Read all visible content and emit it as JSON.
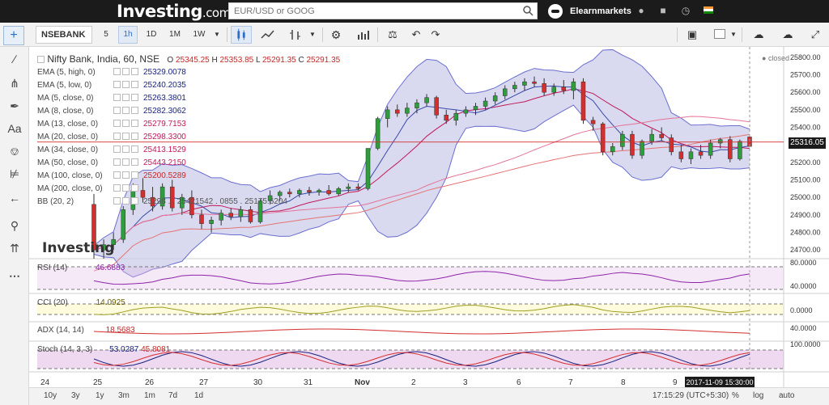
{
  "header": {
    "logo_main": "Investing",
    "logo_suffix": ".com",
    "search_placeholder": "EUR/USD or GOOG",
    "username": "Elearnmarkets"
  },
  "toolbar": {
    "symbol": "NSEBANK",
    "intervals": [
      "5",
      "1h",
      "1D",
      "1M",
      "1W"
    ],
    "active_interval": "1h"
  },
  "legend": {
    "title": "Nifty Bank, India, 60, NSE",
    "ohlc": {
      "o_label": "O",
      "o": "25345.25",
      "h_label": "H",
      "h": "25353.85",
      "l_label": "L",
      "l": "25291.35",
      "c_label": "C",
      "c": "25291.35"
    },
    "indicators": [
      {
        "label": "EMA (5, high, 0)",
        "value": "25329.0078",
        "color": "#1a237e"
      },
      {
        "label": "EMA (5, low, 0)",
        "value": "25240.2035",
        "color": "#1a237e"
      },
      {
        "label": "MA (5, close, 0)",
        "value": "25263.3801",
        "color": "#1a237e"
      },
      {
        "label": "MA (8, close, 0)",
        "value": "25282.3062",
        "color": "#1a237e"
      },
      {
        "label": "MA (13, close, 0)",
        "value": "25279.7153",
        "color": "#c2185b"
      },
      {
        "label": "MA (20, close, 0)",
        "value": "25298.3300",
        "color": "#c2185b"
      },
      {
        "label": "MA (34, close, 0)",
        "value": "25413.1529",
        "color": "#c2185b"
      },
      {
        "label": "MA (50, close, 0)",
        "value": "25443.2150",
        "color": "#c2185b"
      },
      {
        "label": "MA (100, close, 0)",
        "value": "25200.5289",
        "color": "#c62828"
      },
      {
        "label": "MA (200, close, 0)",
        "value": ""
      },
      {
        "label": "BB (20, 2)",
        "value": "25298 . . 25421542 . 0855 . 25175.6204"
      }
    ],
    "closed_label": "closed"
  },
  "price_axis": {
    "ticks": [
      "25800.00",
      "25700.00",
      "25600.00",
      "25500.00",
      "25400.00",
      "25300.00",
      "25200.00",
      "25100.00",
      "25000.00",
      "24900.00",
      "24800.00",
      "24700.00"
    ],
    "current_price": "25316.05"
  },
  "panes": {
    "rsi": {
      "label": "RSI (14)",
      "value": "46.6883",
      "ticks": [
        "80.0000",
        "40.0000"
      ]
    },
    "cci": {
      "label": "CCI (20)",
      "value": "14.0925",
      "ticks": [
        "0.0000"
      ]
    },
    "adx": {
      "label": "ADX (14, 14)",
      "value": "18.5683",
      "ticks": [
        "40.0000"
      ]
    },
    "stoch": {
      "label": "Stoch (14, 3, 3)",
      "value1": "53.0287",
      "value2": "45.8081",
      "ticks": [
        "100.0000"
      ]
    }
  },
  "time_axis": {
    "labels": [
      "24",
      "25",
      "26",
      "27",
      "30",
      "31",
      "Nov",
      "2",
      "3",
      "6",
      "7",
      "8",
      "9"
    ],
    "crosshair_time": "2017-11-09 15:30:00"
  },
  "bottom": {
    "ranges": [
      "10y",
      "3y",
      "1y",
      "3m",
      "1m",
      "7d",
      "1d"
    ],
    "clock": "17:15:29 (UTC+5:30)",
    "opts": [
      "%",
      "log",
      "auto"
    ]
  },
  "watermark": "Investing",
  "colors": {
    "bull": "#2e9e3c",
    "bear": "#d32f2f",
    "band_fill": "#c9cbe8",
    "band_line": "#6b6fd0",
    "header_bg": "#1b1b1b"
  },
  "chart_data": {
    "type": "candlestick",
    "title": "Nifty Bank, India, 60, NSE",
    "x_labels": [
      "24",
      "25",
      "26",
      "27",
      "30",
      "31",
      "Nov",
      "2",
      "3",
      "6",
      "7",
      "8",
      "9"
    ],
    "ylim": [
      24650,
      25850
    ],
    "series": [
      {
        "o": 24960,
        "h": 25020,
        "l": 24650,
        "c": 24700
      },
      {
        "o": 24700,
        "h": 24760,
        "l": 24650,
        "c": 24730
      },
      {
        "o": 24730,
        "h": 24800,
        "l": 24700,
        "c": 24760
      },
      {
        "o": 24760,
        "h": 24950,
        "l": 24740,
        "c": 24930
      },
      {
        "o": 24930,
        "h": 25080,
        "l": 24900,
        "c": 25040
      },
      {
        "o": 25040,
        "h": 25110,
        "l": 24970,
        "c": 25000
      },
      {
        "o": 25000,
        "h": 25060,
        "l": 24920,
        "c": 24950
      },
      {
        "o": 24950,
        "h": 25080,
        "l": 24930,
        "c": 25060
      },
      {
        "o": 25060,
        "h": 25100,
        "l": 24920,
        "c": 24940
      },
      {
        "o": 24940,
        "h": 25020,
        "l": 24900,
        "c": 25000
      },
      {
        "o": 25000,
        "h": 25040,
        "l": 24880,
        "c": 24900
      },
      {
        "o": 24900,
        "h": 24930,
        "l": 24820,
        "c": 24850
      },
      {
        "o": 24850,
        "h": 24890,
        "l": 24800,
        "c": 24870
      },
      {
        "o": 24870,
        "h": 24930,
        "l": 24840,
        "c": 24910
      },
      {
        "o": 24910,
        "h": 24940,
        "l": 24870,
        "c": 24890
      },
      {
        "o": 24890,
        "h": 24950,
        "l": 24860,
        "c": 24930
      },
      {
        "o": 24930,
        "h": 24950,
        "l": 24850,
        "c": 24860
      },
      {
        "o": 24860,
        "h": 24990,
        "l": 24850,
        "c": 24980
      },
      {
        "o": 24980,
        "h": 25040,
        "l": 24960,
        "c": 25010
      },
      {
        "o": 25010,
        "h": 25040,
        "l": 24980,
        "c": 25030
      },
      {
        "o": 25030,
        "h": 25050,
        "l": 25000,
        "c": 25020
      },
      {
        "o": 25020,
        "h": 25050,
        "l": 25000,
        "c": 25040
      },
      {
        "o": 25040,
        "h": 25060,
        "l": 25010,
        "c": 25030
      },
      {
        "o": 25030,
        "h": 25050,
        "l": 25010,
        "c": 25040
      },
      {
        "o": 25040,
        "h": 25070,
        "l": 25010,
        "c": 25020
      },
      {
        "o": 25020,
        "h": 25060,
        "l": 25010,
        "c": 25050
      },
      {
        "o": 25050,
        "h": 25080,
        "l": 25030,
        "c": 25060
      },
      {
        "o": 25060,
        "h": 25080,
        "l": 25040,
        "c": 25050
      },
      {
        "o": 25050,
        "h": 25280,
        "l": 25040,
        "c": 25280
      },
      {
        "o": 25280,
        "h": 25460,
        "l": 25270,
        "c": 25450
      },
      {
        "o": 25450,
        "h": 25520,
        "l": 25400,
        "c": 25500
      },
      {
        "o": 25500,
        "h": 25530,
        "l": 25460,
        "c": 25480
      },
      {
        "o": 25480,
        "h": 25540,
        "l": 25460,
        "c": 25510
      },
      {
        "o": 25510,
        "h": 25560,
        "l": 25480,
        "c": 25540
      },
      {
        "o": 25540,
        "h": 25590,
        "l": 25520,
        "c": 25570
      },
      {
        "o": 25570,
        "h": 25580,
        "l": 25450,
        "c": 25470
      },
      {
        "o": 25470,
        "h": 25500,
        "l": 25420,
        "c": 25440
      },
      {
        "o": 25440,
        "h": 25500,
        "l": 25410,
        "c": 25480
      },
      {
        "o": 25480,
        "h": 25520,
        "l": 25460,
        "c": 25500
      },
      {
        "o": 25500,
        "h": 25540,
        "l": 25470,
        "c": 25520
      },
      {
        "o": 25520,
        "h": 25570,
        "l": 25500,
        "c": 25550
      },
      {
        "o": 25550,
        "h": 25600,
        "l": 25530,
        "c": 25580
      },
      {
        "o": 25580,
        "h": 25640,
        "l": 25560,
        "c": 25620
      },
      {
        "o": 25620,
        "h": 25660,
        "l": 25600,
        "c": 25640
      },
      {
        "o": 25640,
        "h": 25680,
        "l": 25610,
        "c": 25660
      },
      {
        "o": 25660,
        "h": 25690,
        "l": 25630,
        "c": 25650
      },
      {
        "o": 25650,
        "h": 25680,
        "l": 25580,
        "c": 25600
      },
      {
        "o": 25600,
        "h": 25650,
        "l": 25580,
        "c": 25630
      },
      {
        "o": 25630,
        "h": 25670,
        "l": 25590,
        "c": 25610
      },
      {
        "o": 25610,
        "h": 25680,
        "l": 25560,
        "c": 25660
      },
      {
        "o": 25660,
        "h": 25680,
        "l": 25420,
        "c": 25440
      },
      {
        "o": 25440,
        "h": 25460,
        "l": 25380,
        "c": 25420
      },
      {
        "o": 25420,
        "h": 25430,
        "l": 25240,
        "c": 25260
      },
      {
        "o": 25260,
        "h": 25310,
        "l": 25240,
        "c": 25290
      },
      {
        "o": 25290,
        "h": 25380,
        "l": 25270,
        "c": 25360
      },
      {
        "o": 25360,
        "h": 25380,
        "l": 25220,
        "c": 25240
      },
      {
        "o": 25240,
        "h": 25330,
        "l": 25220,
        "c": 25320
      },
      {
        "o": 25320,
        "h": 25390,
        "l": 25300,
        "c": 25360
      },
      {
        "o": 25360,
        "h": 25400,
        "l": 25320,
        "c": 25340
      },
      {
        "o": 25340,
        "h": 25360,
        "l": 25240,
        "c": 25260
      },
      {
        "o": 25260,
        "h": 25300,
        "l": 25200,
        "c": 25220
      },
      {
        "o": 25220,
        "h": 25280,
        "l": 25190,
        "c": 25260
      },
      {
        "o": 25260,
        "h": 25300,
        "l": 25220,
        "c": 25240
      },
      {
        "o": 25240,
        "h": 25330,
        "l": 25220,
        "c": 25310
      },
      {
        "o": 25310,
        "h": 25340,
        "l": 25280,
        "c": 25330
      },
      {
        "o": 25330,
        "h": 25350,
        "l": 25200,
        "c": 25220
      },
      {
        "o": 25220,
        "h": 25330,
        "l": 25210,
        "c": 25320
      },
      {
        "o": 25345,
        "h": 25354,
        "l": 25291,
        "c": 25291
      }
    ]
  }
}
